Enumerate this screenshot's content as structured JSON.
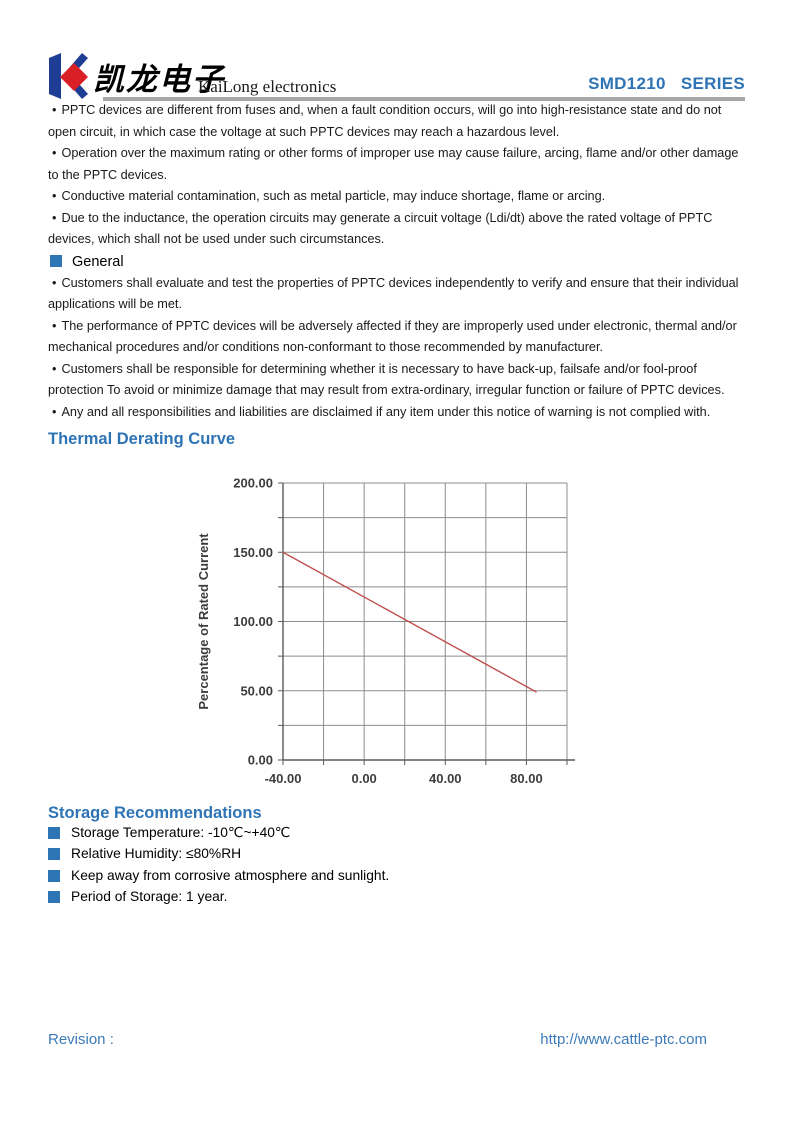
{
  "header": {
    "logo_chinese": "凯龙电子",
    "logo_english": "KaiLong electronics",
    "series_title": "SMD1210   SERIES"
  },
  "glyphs": {
    "bullet": "•"
  },
  "warnings": [
    "PPTC devices are different from fuses and, when a fault condition occurs, will go into high-resistance state and do not open circuit, in which case the voltage at such PPTC devices may reach a hazardous level.",
    "Operation over the maximum rating or other forms of improper use may cause failure, arcing, flame and/or other damage to the PPTC devices.",
    "Conductive material contamination, such as metal particle, may induce shortage, flame or arcing.",
    "Due to the inductance, the operation circuits may generate a circuit voltage (Ldi/dt) above the rated voltage of PPTC devices, which shall not be used under such circumstances."
  ],
  "general": {
    "title": "General",
    "items": [
      "Customers shall evaluate and test the properties of PPTC devices independently to verify and ensure that their individual applications will be met.",
      "The performance of PPTC devices will be adversely affected if they are improperly used under electronic, thermal and/or mechanical procedures and/or conditions non-conformant to those recommended by manufacturer.",
      "Customers shall be responsible for determining whether it is necessary to have back-up, failsafe and/or fool-proof protection To avoid or minimize damage that may result from extra-ordinary, irregular function or failure of PPTC devices.",
      "Any and all responsibilities and liabilities are disclaimed if any item under this notice of warning is not complied with."
    ]
  },
  "thermal_section": {
    "title": "Thermal Derating Curve"
  },
  "chart_data": {
    "type": "line",
    "title": "Thermal Derating Curve",
    "xlabel": "",
    "ylabel": "Percentage of Rated Current",
    "xlim": [
      -40,
      100
    ],
    "ylim": [
      0,
      200
    ],
    "x_grid_step": 20,
    "y_grid_step": 25,
    "x_ticks": [
      -40,
      0,
      40,
      80
    ],
    "x_tick_labels": [
      "-40.00",
      "0.00",
      "40.00",
      "80.00"
    ],
    "y_ticks": [
      0,
      50,
      100,
      150,
      200
    ],
    "y_tick_labels": [
      "0.00",
      "50.00",
      "100.00",
      "150.00",
      "200.00"
    ],
    "grid": true,
    "legend": false,
    "grid_color": "#8c8c8c",
    "axis_color": "#5a5a5a",
    "series": [
      {
        "name": "derating-line",
        "color": "#c0504d",
        "points": [
          {
            "x": -40,
            "y": 150
          },
          {
            "x": 85,
            "y": 49
          }
        ]
      }
    ]
  },
  "storage": {
    "title": "Storage Recommendations",
    "items": [
      "Storage Temperature: -10℃~+40℃",
      "Relative Humidity: ≤80%RH",
      "Keep away from corrosive atmosphere and sunlight.",
      "Period of Storage: 1 year."
    ]
  },
  "footer": {
    "revision_label": "Revision :",
    "url": "http://www.cattle-ptc.com"
  },
  "colors": {
    "heading_blue": "#2e74b5",
    "bullet_square_blue": "#2e75b6",
    "logo_blue": "#1d3e94",
    "logo_red": "#d92027",
    "header_rule_gray": "#a6a6a6",
    "footer_blue": "#3d7ab8",
    "chart_line_red": "#c0504d"
  }
}
